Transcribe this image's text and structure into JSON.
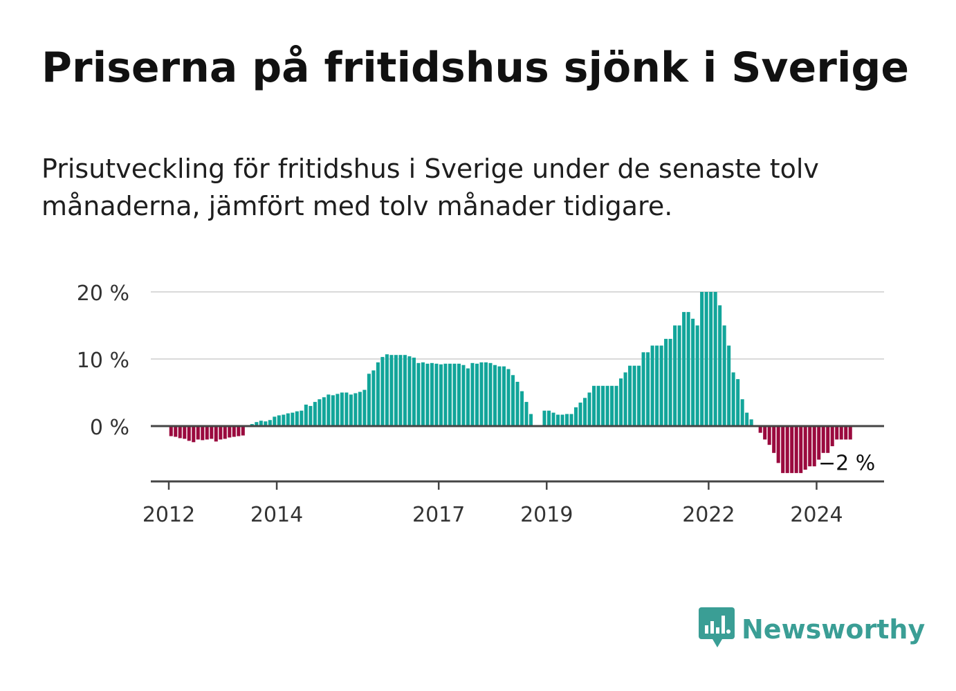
{
  "title": "Priserna på fritidshus sjönk i Sverige",
  "subtitle": "Prisutveckling för fritidshus i Sverige under de senaste tolv månaderna, jämfört med tolv månader tidigare.",
  "brand": {
    "name": "Newsworthy",
    "color": "#3a9e95",
    "icon": "bar-chart-speech-bubble-icon"
  },
  "colors": {
    "positive": "#12a59a",
    "negative": "#9a0a3e",
    "grid": "#d9d9d9",
    "axis": "#444444"
  },
  "chart_data": {
    "type": "bar",
    "title": "",
    "xlabel": "",
    "ylabel": "",
    "ylim": [
      -8,
      20
    ],
    "y_ticks": [
      {
        "value": 0,
        "label": "0 %"
      },
      {
        "value": 10,
        "label": "10 %"
      },
      {
        "value": 20,
        "label": "20 %"
      }
    ],
    "x_ticks": [
      {
        "year": 2012,
        "label": "2012"
      },
      {
        "year": 2014,
        "label": "2014"
      },
      {
        "year": 2017,
        "label": "2017"
      },
      {
        "year": 2019,
        "label": "2019"
      },
      {
        "year": 2022,
        "label": "2022"
      },
      {
        "year": 2024,
        "label": "2024"
      }
    ],
    "x_start": "2011-09",
    "x_end": "2025-04",
    "first_month": "2012-01",
    "last_value_label": "−2 %",
    "grid": true,
    "legend": "none",
    "values": [
      -1.5,
      -1.6,
      -1.8,
      -1.9,
      -2.2,
      -2.4,
      -2.0,
      -2.1,
      -2.0,
      -1.9,
      -2.3,
      -2.0,
      -1.9,
      -1.7,
      -1.6,
      -1.5,
      -1.4,
      0.1,
      0.3,
      0.6,
      0.8,
      0.7,
      0.9,
      1.4,
      1.6,
      1.7,
      1.9,
      2.0,
      2.2,
      2.3,
      3.2,
      3.0,
      3.6,
      4.0,
      4.3,
      4.7,
      4.6,
      4.8,
      5.0,
      5.0,
      4.7,
      4.9,
      5.1,
      5.4,
      7.8,
      8.3,
      9.5,
      10.3,
      10.7,
      10.6,
      10.6,
      10.6,
      10.6,
      10.4,
      10.2,
      9.4,
      9.5,
      9.3,
      9.4,
      9.3,
      9.2,
      9.3,
      9.3,
      9.3,
      9.3,
      9.1,
      8.6,
      9.4,
      9.3,
      9.5,
      9.5,
      9.4,
      9.1,
      8.9,
      8.9,
      8.5,
      7.6,
      6.6,
      5.2,
      3.6,
      1.8,
      null,
      null,
      2.3,
      2.3,
      2.0,
      1.7,
      1.7,
      1.8,
      1.8,
      2.8,
      3.5,
      4.2,
      5.0,
      6.0,
      6.0,
      6.0,
      6.0,
      6.0,
      6.0,
      7.1,
      8.0,
      9.0,
      9.0,
      9.0,
      11.0,
      11.0,
      12.0,
      12.0,
      12.0,
      13.0,
      13.0,
      15.0,
      15.0,
      17.0,
      17.0,
      16.0,
      15.0,
      20.0,
      20.0,
      20.0,
      20.0,
      18.0,
      15.0,
      12.0,
      8.0,
      7.0,
      4.0,
      2.0,
      1.0,
      0.0,
      -1.0,
      -2.0,
      -2.8,
      -4.0,
      -5.5,
      -7.0,
      -7.0,
      -7.0,
      -7.0,
      -7.0,
      -6.5,
      -6.0,
      -6.0,
      -5.0,
      -4.0,
      -4.0,
      -3.0,
      -2.0,
      -2.0,
      -2.0,
      -2.0
    ]
  }
}
